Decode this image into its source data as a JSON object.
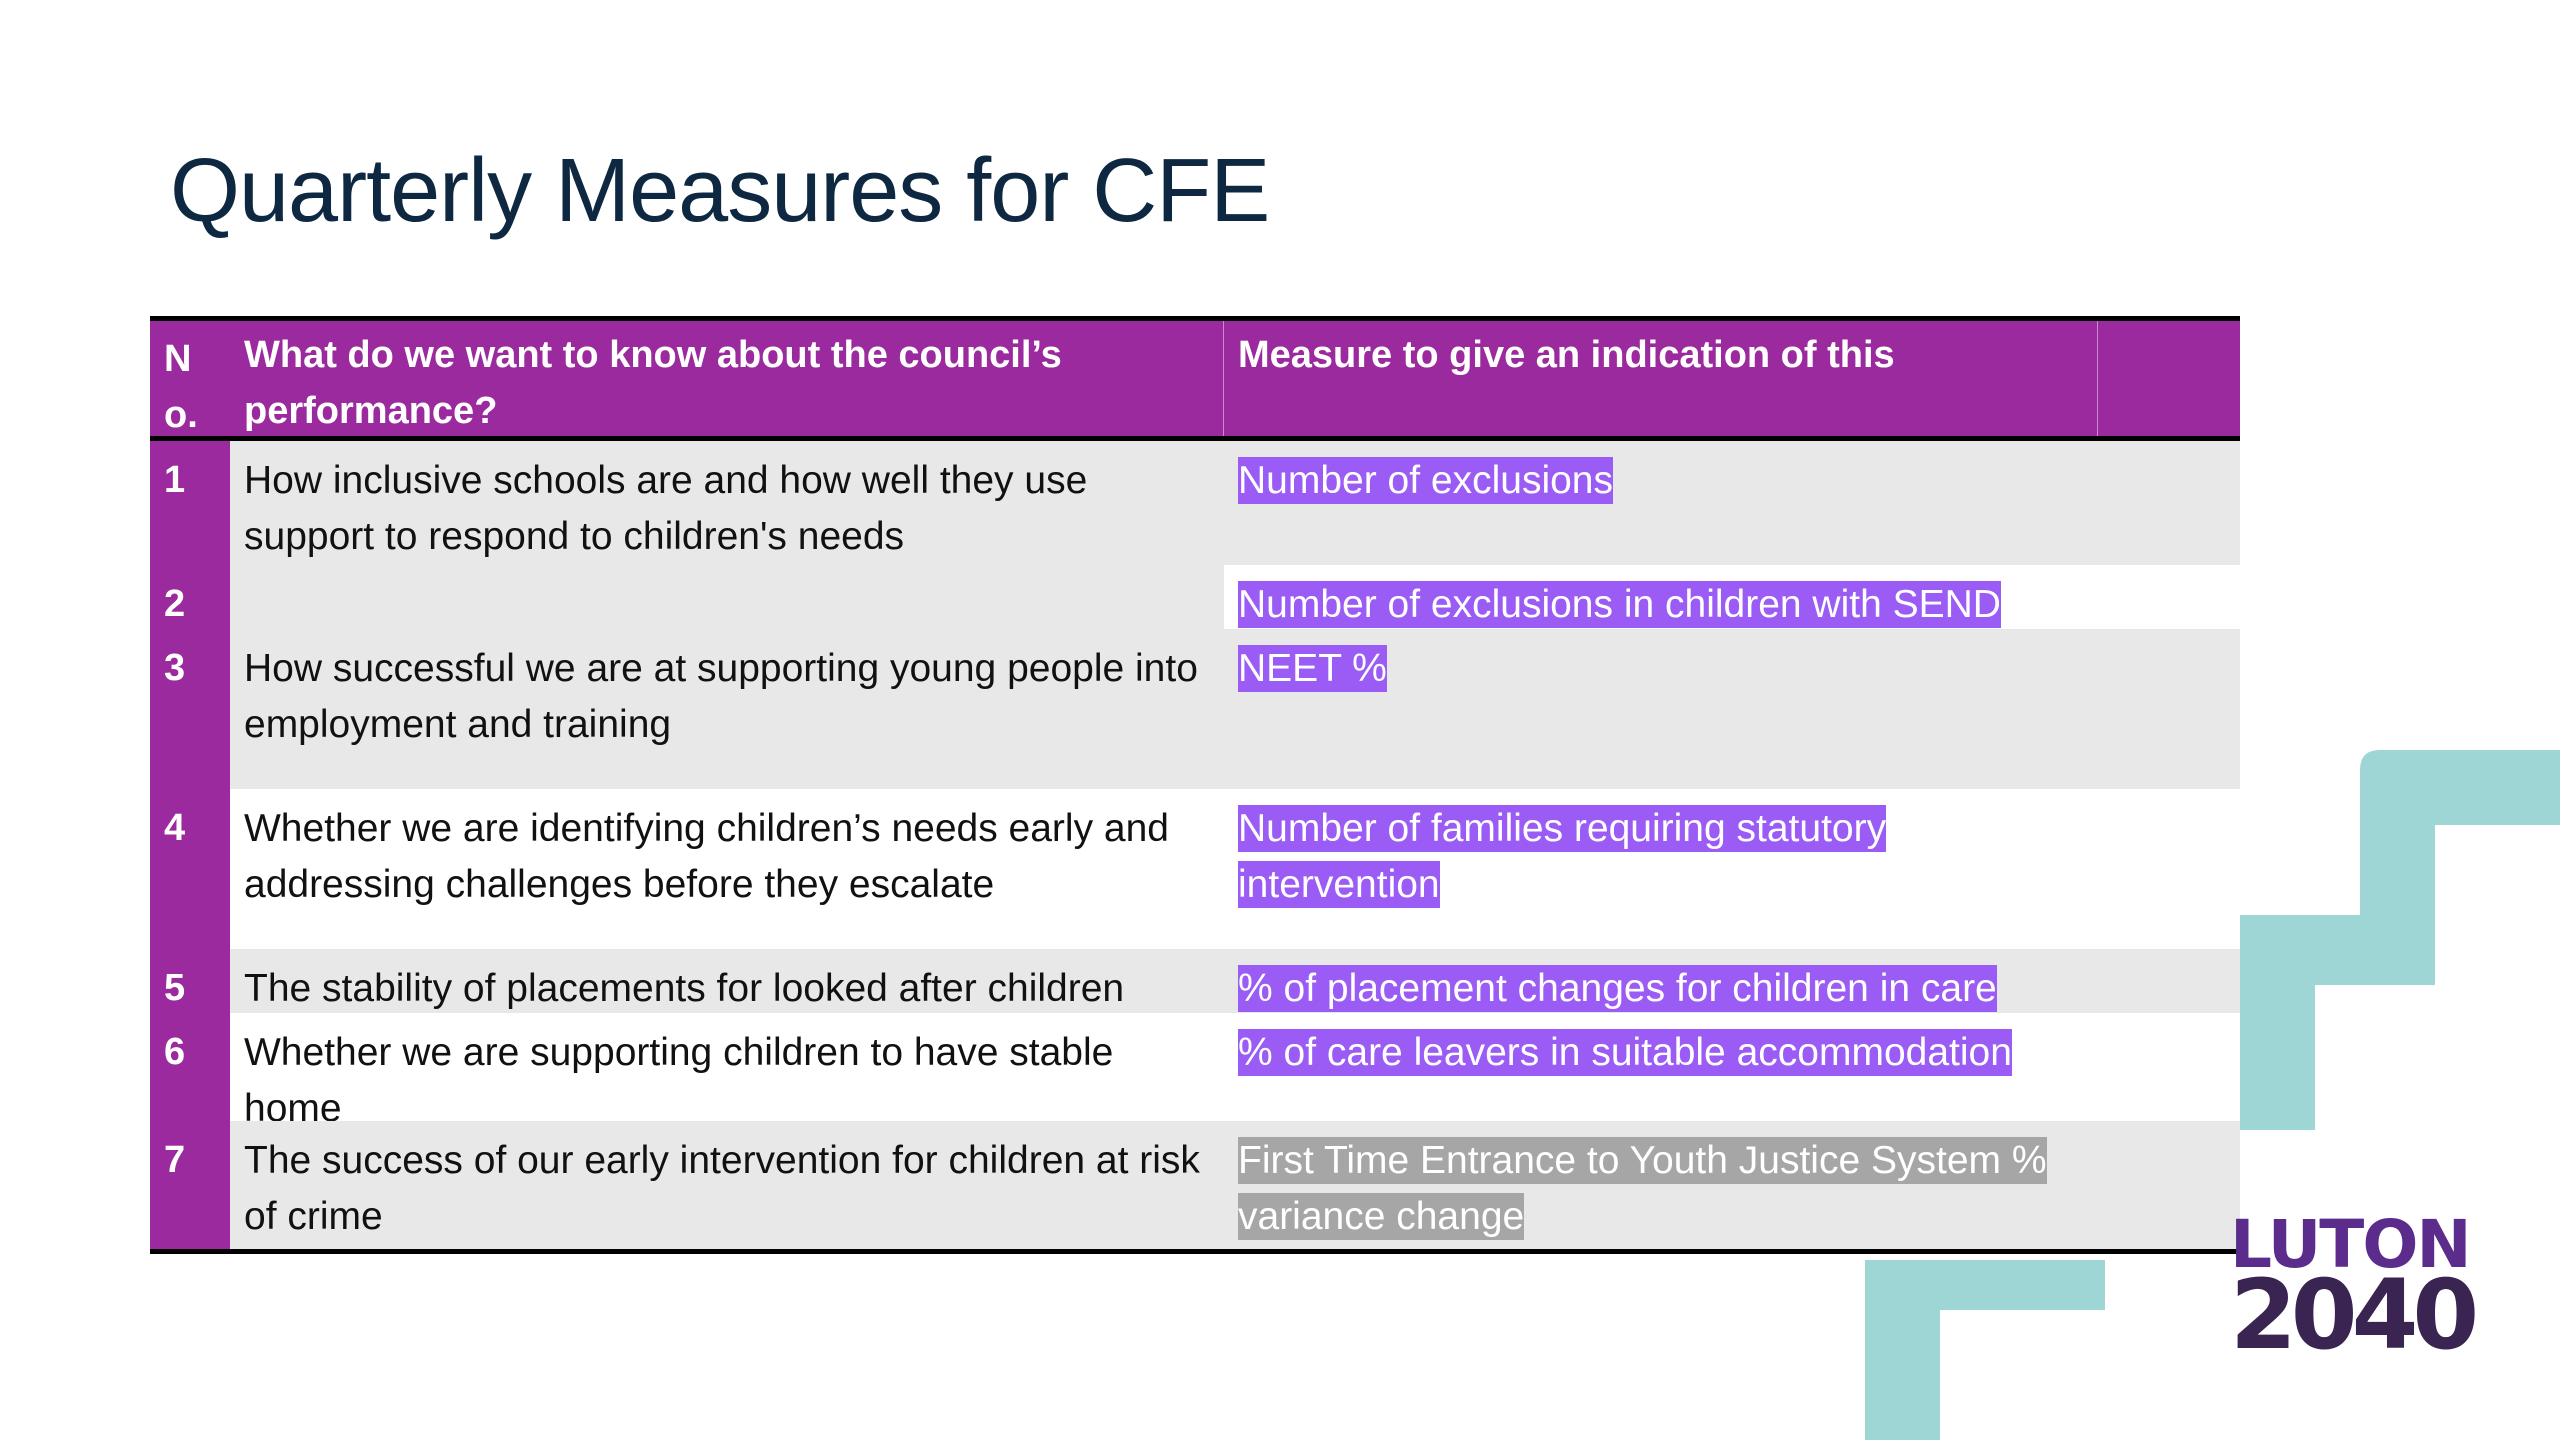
{
  "slide": {
    "title": "Quarterly Measures for CFE"
  },
  "table": {
    "headers": {
      "no": "N o.",
      "question": "What do we want to know about the council’s performance?",
      "measure": "Measure to give an indication of this"
    },
    "rows": [
      {
        "no": "1",
        "question": "How inclusive schools are and how well they use support to respond to children's needs",
        "measure": "Number of exclusions"
      },
      {
        "no": "2",
        "question": "",
        "measure": "Number of exclusions in children with SEND"
      },
      {
        "no": "3",
        "question": "How successful we are at supporting young people into employment and training",
        "measure": "NEET %"
      },
      {
        "no": "4",
        "question": "Whether we are identifying children’s needs early and addressing challenges before they escalate",
        "measure": "Number of families requiring statutory intervention"
      },
      {
        "no": "5",
        "question": "The stability of placements for looked after children",
        "measure": "% of placement changes for children in care"
      },
      {
        "no": "6",
        "question": "Whether we are supporting children to have stable home",
        "measure": "% of care leavers in suitable accommodation"
      },
      {
        "no": "7",
        "question": "The success of our early intervention for children at risk of crime",
        "measure": "First Time Entrance to Youth Justice System % variance change"
      }
    ]
  },
  "logo": {
    "line1": "LUTON",
    "line2": "2040"
  },
  "colors": {
    "header_purple": "#9b2a9e",
    "highlight_purple": "#9b5cf5",
    "highlight_gray": "#a6a6a6",
    "deco_teal": "#9dd6d4",
    "title_navy": "#0e2841"
  }
}
